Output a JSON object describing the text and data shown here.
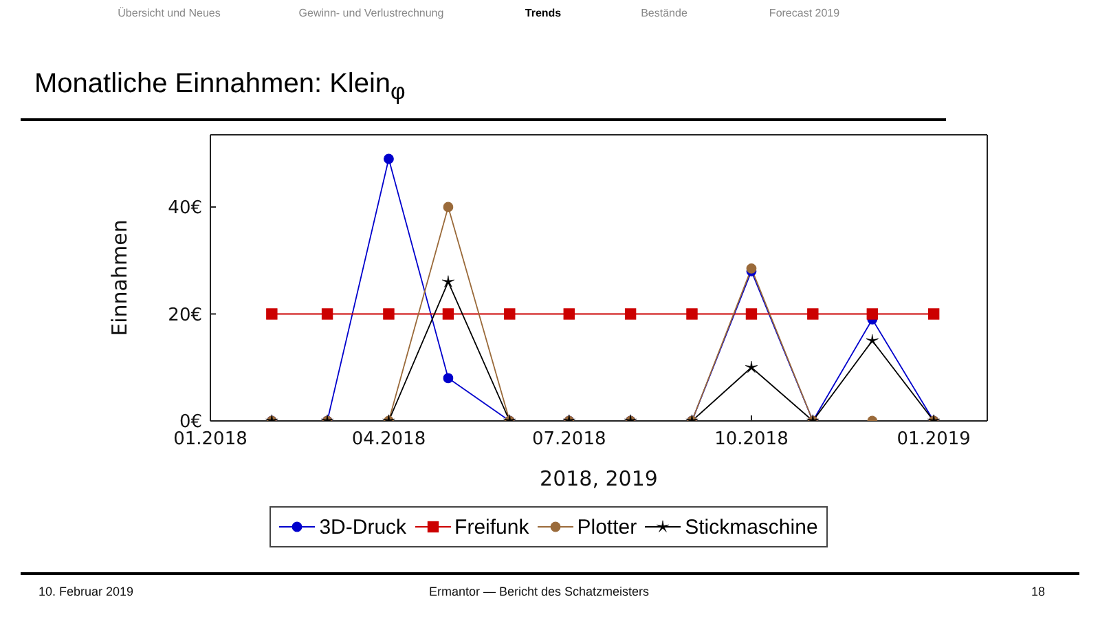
{
  "chart_data": {
    "type": "line",
    "title": "Monatliche Einnahmen: Klein$_{φ}$",
    "xlabel": "2018, 2019",
    "ylabel": "Einnahmen",
    "x": [
      "2018-02",
      "2018-03",
      "2018-04",
      "2018-05",
      "2018-06",
      "2018-07",
      "2018-08",
      "2018-09",
      "2018-10",
      "2018-11",
      "2018-12",
      "2019-01"
    ],
    "series": [
      {
        "name": "3D-Druck",
        "color": "#0000cc",
        "marker": "circle",
        "values": [
          0,
          0,
          49,
          8,
          0,
          0,
          0,
          0,
          28,
          0,
          19,
          0
        ]
      },
      {
        "name": "Freifunk",
        "color": "#cc0000",
        "marker": "square",
        "values": [
          20,
          20,
          20,
          20,
          20,
          20,
          20,
          20,
          20,
          20,
          20,
          20
        ]
      },
      {
        "name": "Plotter",
        "color": "#9a6a3a",
        "marker": "circle",
        "values": [
          0,
          0,
          0,
          40,
          0,
          0,
          0,
          0,
          28.5,
          0,
          0,
          0
        ]
      },
      {
        "name": "Stickmaschine",
        "color": "#000000",
        "marker": "star",
        "values": [
          0,
          0,
          0,
          26,
          0,
          0,
          0,
          0,
          10,
          0,
          15,
          0
        ]
      }
    ],
    "xlim": [
      "2018-01-01",
      "2019-01-28"
    ],
    "xticks": [
      {
        "value": "2018-01",
        "label": "01.2018"
      },
      {
        "value": "2018-04",
        "label": "04.2018"
      },
      {
        "value": "2018-07",
        "label": "07.2018"
      },
      {
        "value": "2018-10",
        "label": "10.2018"
      },
      {
        "value": "2019-01",
        "label": "01.2019"
      }
    ],
    "ylim": [
      0,
      53.5
    ],
    "yticks": [
      {
        "value": 0,
        "label": "0€"
      },
      {
        "value": 20,
        "label": "20€"
      },
      {
        "value": 40,
        "label": "40€"
      }
    ],
    "legend": "bottom",
    "annotations": [
      "Übersicht und Neues",
      "Gewinn- und Verlustrechnung",
      "Trends",
      "Bestände",
      "Forecast 2019",
      "10. Februar 2019",
      "Ermantor — Bericht des Schatzmeisters",
      "18"
    ]
  }
}
